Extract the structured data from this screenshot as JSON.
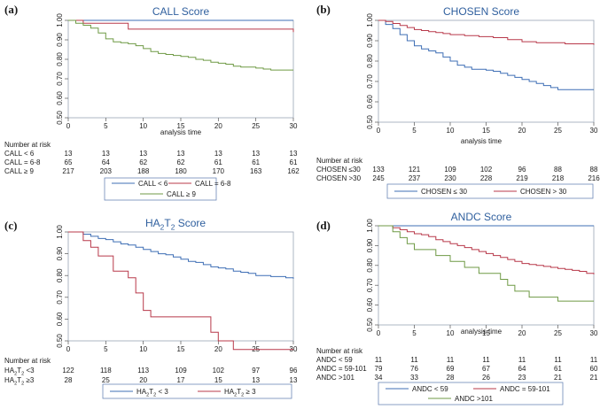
{
  "figure": {
    "colors": {
      "blue": "#3f6fb5",
      "red": "#b8394a",
      "green": "#6f9a45",
      "frame": "#6b88b8",
      "text": "#1a1a1a"
    }
  },
  "chart_data": [
    {
      "id": "a",
      "letter": "(a)",
      "type": "line",
      "title": "CALL Score",
      "xlabel": "analysis time",
      "ylabel": "",
      "xlim": [
        0,
        30
      ],
      "ylim": [
        0.5,
        1.0
      ],
      "xticks": [
        0,
        5,
        10,
        15,
        20,
        25,
        30
      ],
      "yticks": [
        0.5,
        0.6,
        0.7,
        0.8,
        0.9,
        1.0
      ],
      "ytick_labels": [
        "0.50",
        "0.60",
        "0.70",
        "0.80",
        "0.90",
        "1.00"
      ],
      "series": [
        {
          "name": "CALL < 6",
          "color": "#3f6fb5",
          "x": [
            0,
            30
          ],
          "y": [
            1.0,
            1.0
          ]
        },
        {
          "name": "CALL = 6-8",
          "color": "#b8394a",
          "x": [
            0,
            2,
            8,
            30
          ],
          "y": [
            1.0,
            0.985,
            0.955,
            0.94
          ]
        },
        {
          "name": "CALL ≥ 9",
          "color": "#6f9a45",
          "x": [
            0,
            1,
            2,
            3,
            4,
            5,
            6,
            7,
            8,
            9,
            10,
            11,
            12,
            13,
            14,
            15,
            16,
            17,
            18,
            19,
            20,
            21,
            22,
            23,
            24,
            25,
            26,
            27,
            28,
            29,
            30
          ],
          "y": [
            1.0,
            0.985,
            0.975,
            0.96,
            0.935,
            0.905,
            0.89,
            0.885,
            0.88,
            0.87,
            0.855,
            0.84,
            0.83,
            0.825,
            0.82,
            0.815,
            0.81,
            0.8,
            0.795,
            0.785,
            0.78,
            0.775,
            0.765,
            0.76,
            0.76,
            0.755,
            0.75,
            0.745,
            0.745,
            0.745,
            0.745
          ]
        }
      ],
      "risk": {
        "header": "Number at risk",
        "rows": [
          {
            "label": "CALL < 6",
            "values": [
              "13",
              "13",
              "13",
              "13",
              "13",
              "13",
              "13"
            ]
          },
          {
            "label": "CALL = 6-8",
            "values": [
              "65",
              "64",
              "62",
              "62",
              "61",
              "61",
              "61"
            ]
          },
          {
            "label": "CALL ≥ 9",
            "values": [
              "217",
              "203",
              "188",
              "180",
              "170",
              "163",
              "162"
            ]
          }
        ]
      },
      "legend": [
        "CALL < 6",
        "CALL = 6-8",
        "CALL ≥ 9"
      ]
    },
    {
      "id": "b",
      "letter": "(b)",
      "type": "line",
      "title": "CHOSEN Score",
      "xlabel": "analysis time",
      "ylabel": "",
      "xlim": [
        0,
        30
      ],
      "ylim": [
        0.5,
        1.0
      ],
      "xticks": [
        0,
        5,
        10,
        15,
        20,
        25,
        30
      ],
      "yticks": [
        0.5,
        0.6,
        0.7,
        0.8,
        0.9,
        1.0
      ],
      "ytick_labels": [
        "0.50",
        "0.60",
        "0.70",
        "0.80",
        "0.90",
        "1.00"
      ],
      "series": [
        {
          "name": "CHOSEN ≤ 30",
          "color": "#3f6fb5",
          "x": [
            0,
            1,
            2,
            3,
            4,
            5,
            6,
            7,
            8,
            9,
            10,
            11,
            12,
            13,
            14,
            15,
            16,
            17,
            18,
            19,
            20,
            21,
            22,
            23,
            24,
            25,
            26,
            27,
            28,
            29,
            30
          ],
          "y": [
            1.0,
            0.98,
            0.96,
            0.93,
            0.9,
            0.875,
            0.86,
            0.85,
            0.84,
            0.82,
            0.8,
            0.78,
            0.77,
            0.76,
            0.76,
            0.755,
            0.75,
            0.74,
            0.73,
            0.72,
            0.71,
            0.7,
            0.69,
            0.68,
            0.67,
            0.66,
            0.66,
            0.66,
            0.66,
            0.66,
            0.66
          ]
        },
        {
          "name": "CHOSEN > 30",
          "color": "#b8394a",
          "x": [
            0,
            1,
            2,
            3,
            4,
            5,
            6,
            7,
            8,
            9,
            10,
            12,
            14,
            16,
            18,
            20,
            22,
            24,
            26,
            28,
            30
          ],
          "y": [
            1.0,
            0.995,
            0.985,
            0.975,
            0.965,
            0.955,
            0.95,
            0.945,
            0.94,
            0.935,
            0.93,
            0.925,
            0.92,
            0.915,
            0.905,
            0.895,
            0.89,
            0.89,
            0.885,
            0.885,
            0.88
          ]
        }
      ],
      "risk": {
        "header": "Number at risk",
        "rows": [
          {
            "label": "CHOSEN ≤30",
            "values": [
              "133",
              "121",
              "109",
              "102",
              "96",
              "88",
              "88"
            ]
          },
          {
            "label": "CHOSEN >30",
            "values": [
              "245",
              "237",
              "230",
              "228",
              "219",
              "218",
              "216"
            ]
          }
        ]
      },
      "legend": [
        "CHOSEN ≤ 30",
        "CHOSEN > 30"
      ]
    },
    {
      "id": "c",
      "letter": "(c)",
      "type": "line",
      "title_main": "HA",
      "title_sub1": "2",
      "title_mid": "T",
      "title_sub2": "2",
      "title_tail": " Score",
      "xlabel": "",
      "ylabel": "",
      "xlim": [
        0,
        30
      ],
      "ylim": [
        0.5,
        1.0
      ],
      "xticks": [
        0,
        5,
        10,
        15,
        20,
        25,
        30
      ],
      "yticks": [
        0.5,
        0.6,
        0.7,
        0.8,
        0.9,
        1.0
      ],
      "ytick_labels": [
        "0.50",
        "0.60",
        "0.70",
        "0.80",
        "0.90",
        "1.00"
      ],
      "series": [
        {
          "name": "HA2T2 < 3",
          "color": "#3f6fb5",
          "x": [
            0,
            2,
            3,
            4,
            5,
            6,
            7,
            8,
            9,
            10,
            11,
            12,
            13,
            14,
            15,
            16,
            17,
            18,
            19,
            20,
            21,
            22,
            23,
            24,
            25,
            26,
            27,
            28,
            29,
            30
          ],
          "y": [
            1.0,
            0.99,
            0.98,
            0.97,
            0.965,
            0.955,
            0.945,
            0.94,
            0.93,
            0.92,
            0.91,
            0.9,
            0.895,
            0.885,
            0.875,
            0.865,
            0.86,
            0.85,
            0.84,
            0.835,
            0.83,
            0.82,
            0.815,
            0.81,
            0.8,
            0.8,
            0.795,
            0.795,
            0.79,
            0.785
          ]
        },
        {
          "name": "HA2T2 ≥ 3",
          "color": "#b8394a",
          "x": [
            0,
            2,
            3,
            4,
            6,
            8,
            9,
            10,
            11,
            13,
            15,
            16,
            17,
            19,
            20,
            22,
            30
          ],
          "y": [
            1.0,
            0.96,
            0.93,
            0.89,
            0.82,
            0.79,
            0.72,
            0.64,
            0.61,
            0.61,
            0.61,
            0.61,
            0.61,
            0.54,
            0.5,
            0.46,
            0.46
          ]
        }
      ],
      "risk": {
        "header": "Number at risk",
        "rows": [
          {
            "label_main": "HA",
            "label_s1": "2",
            "label_mid": "T",
            "label_s2": "2",
            "label_tail": " <3",
            "values": [
              "122",
              "118",
              "113",
              "109",
              "102",
              "97",
              "96"
            ]
          },
          {
            "label_main": "HA",
            "label_s1": "2",
            "label_mid": "T",
            "label_s2": "2",
            "label_tail": " ≥3",
            "values": [
              "28",
              "25",
              "20",
              "17",
              "15",
              "13",
              "13"
            ]
          }
        ]
      },
      "legend_rich": [
        {
          "main": "HA",
          "s1": "2",
          "mid": "T",
          "s2": "2",
          "tail": " < 3"
        },
        {
          "main": "HA",
          "s1": "2",
          "mid": "T",
          "s2": "2",
          "tail": " ≥ 3"
        }
      ]
    },
    {
      "id": "d",
      "letter": "(d)",
      "type": "line",
      "title": "ANDC Score",
      "xlabel": "analysis time",
      "ylabel": "",
      "xlim": [
        0,
        30
      ],
      "ylim": [
        0.5,
        1.0
      ],
      "xticks": [
        0,
        5,
        10,
        15,
        20,
        25,
        30
      ],
      "yticks": [
        0.5,
        0.6,
        0.7,
        0.8,
        0.9,
        1.0
      ],
      "ytick_labels": [
        "0.50",
        "0.60",
        "0.70",
        "0.80",
        "0.90",
        "1.00"
      ],
      "series": [
        {
          "name": "ANDC < 59",
          "color": "#3f6fb5",
          "x": [
            0,
            30
          ],
          "y": [
            1.0,
            1.0
          ]
        },
        {
          "name": "ANDC = 59-101",
          "color": "#b8394a",
          "x": [
            0,
            2,
            3,
            4,
            5,
            6,
            7,
            8,
            9,
            10,
            11,
            12,
            13,
            14,
            15,
            16,
            17,
            18,
            19,
            20,
            21,
            22,
            23,
            24,
            25,
            26,
            27,
            28,
            29,
            30
          ],
          "y": [
            1.0,
            0.99,
            0.98,
            0.97,
            0.96,
            0.955,
            0.945,
            0.93,
            0.92,
            0.91,
            0.9,
            0.89,
            0.88,
            0.87,
            0.86,
            0.85,
            0.84,
            0.83,
            0.82,
            0.81,
            0.805,
            0.8,
            0.795,
            0.79,
            0.785,
            0.78,
            0.775,
            0.77,
            0.76,
            0.755
          ]
        },
        {
          "name": "ANDC >101",
          "color": "#6f9a45",
          "x": [
            0,
            2,
            3,
            4,
            5,
            8,
            10,
            12,
            14,
            17,
            18,
            19,
            21,
            23,
            25,
            27,
            30
          ],
          "y": [
            1.0,
            0.97,
            0.94,
            0.91,
            0.88,
            0.85,
            0.82,
            0.79,
            0.76,
            0.73,
            0.7,
            0.67,
            0.64,
            0.64,
            0.62,
            0.62,
            0.62
          ]
        }
      ],
      "risk": {
        "header": "Number at risk",
        "rows": [
          {
            "label": "ANDC < 59",
            "values": [
              "11",
              "11",
              "11",
              "11",
              "11",
              "11",
              "11"
            ]
          },
          {
            "label": "ANDC = 59-101",
            "values": [
              "79",
              "76",
              "69",
              "67",
              "64",
              "61",
              "60"
            ]
          },
          {
            "label": "ANDC >101",
            "values": [
              "34",
              "33",
              "28",
              "26",
              "23",
              "21",
              "21"
            ]
          }
        ]
      },
      "legend": [
        "ANDC < 59",
        "ANDC = 59-101",
        "ANDC >101"
      ]
    }
  ]
}
